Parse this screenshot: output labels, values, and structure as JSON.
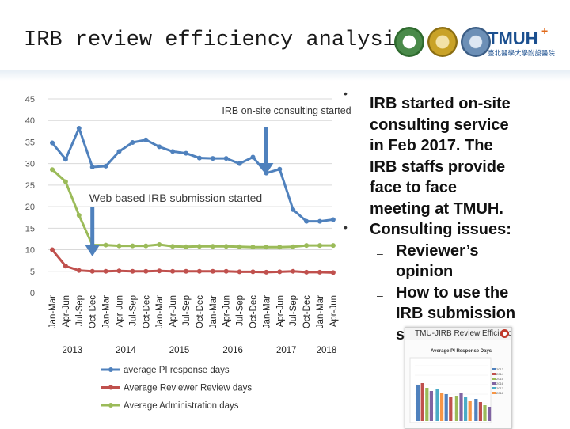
{
  "slide": {
    "title": "IRB review efficiency analysis"
  },
  "logos": {
    "brand": "TMUH",
    "brand_plus": "+",
    "brand_sub": "臺北醫學大學附設醫院",
    "seal_icons": [
      "green-seal-icon",
      "gold-seal-icon",
      "blue-seal-icon"
    ]
  },
  "chart_data": {
    "type": "line",
    "ylim": [
      0,
      45
    ],
    "yticks": [
      0,
      5,
      10,
      15,
      20,
      25,
      30,
      35,
      40,
      45
    ],
    "x": [
      "Jan-Mar",
      "Apr-Jun",
      "Jul-Sep",
      "Oct-Dec",
      "Jan-Mar",
      "Apr-Jun",
      "Jul-Sep",
      "Oct-Dec",
      "Jan-Mar",
      "Apr-Jun",
      "Jul-Sep",
      "Oct-Dec",
      "Jan-Mar",
      "Apr-Jun",
      "Jul-Sep",
      "Oct-Dec",
      "Jan-Mar",
      "Apr-Jun",
      "Jul-Sep",
      "Oct-Dec",
      "Jan-Mar",
      "Apr-Jun"
    ],
    "years": [
      {
        "label": "2013",
        "start": 0,
        "end": 3
      },
      {
        "label": "2014",
        "start": 4,
        "end": 7
      },
      {
        "label": "2015",
        "start": 8,
        "end": 11
      },
      {
        "label": "2016",
        "start": 12,
        "end": 15
      },
      {
        "label": "2017",
        "start": 16,
        "end": 19
      },
      {
        "label": "2018",
        "start": 20,
        "end": 21
      }
    ],
    "series": [
      {
        "name": "average PI response days",
        "color": "#4f81bd",
        "values": [
          34.8,
          31.0,
          38.2,
          29.2,
          29.4,
          32.8,
          34.9,
          35.5,
          33.9,
          32.8,
          32.4,
          31.3,
          31.2,
          31.2,
          30.0,
          31.5,
          27.8,
          28.7,
          19.3,
          16.6,
          16.6,
          17.0
        ]
      },
      {
        "name": "Average Reviewer Review days",
        "color": "#c0504d",
        "values": [
          10.0,
          6.2,
          5.2,
          5.0,
          5.0,
          5.1,
          5.0,
          5.0,
          5.1,
          5.0,
          5.0,
          5.0,
          5.0,
          5.0,
          4.9,
          4.9,
          4.8,
          4.9,
          5.0,
          4.8,
          4.8,
          4.7
        ]
      },
      {
        "name": "Average Administration days",
        "color": "#9bbb59",
        "values": [
          28.6,
          25.8,
          18.0,
          11.1,
          11.1,
          10.9,
          10.9,
          10.9,
          11.2,
          10.8,
          10.7,
          10.8,
          10.8,
          10.8,
          10.7,
          10.6,
          10.6,
          10.6,
          10.7,
          11.0,
          11.0,
          11.0
        ]
      }
    ],
    "annotations": [
      {
        "text": "Web based IRB submission started",
        "index": 3
      },
      {
        "text": "IRB on-site consulting started",
        "index": 16
      }
    ]
  },
  "bullets": [
    {
      "kind": "dot",
      "lines": [
        "IRB started on-site",
        "consulting service",
        "in Feb 2017. The",
        "IRB staffs provide",
        "face to face",
        "meeting at TMUH."
      ]
    },
    {
      "kind": "dot",
      "lines": [
        "Consulting issues:"
      ]
    },
    {
      "kind": "dash",
      "lines": [
        "Reviewer’s",
        "opinion"
      ]
    },
    {
      "kind": "dash",
      "lines": [
        "How to use the",
        "IRB submission",
        "s"
      ]
    }
  ],
  "thumbnail": {
    "title": "TMU-JIRB Review Efficiency Analysis",
    "chart_title": "Average PI Response Days",
    "legend": [
      "2013",
      "2014",
      "2015",
      "2016",
      "2017",
      "2018"
    ]
  }
}
